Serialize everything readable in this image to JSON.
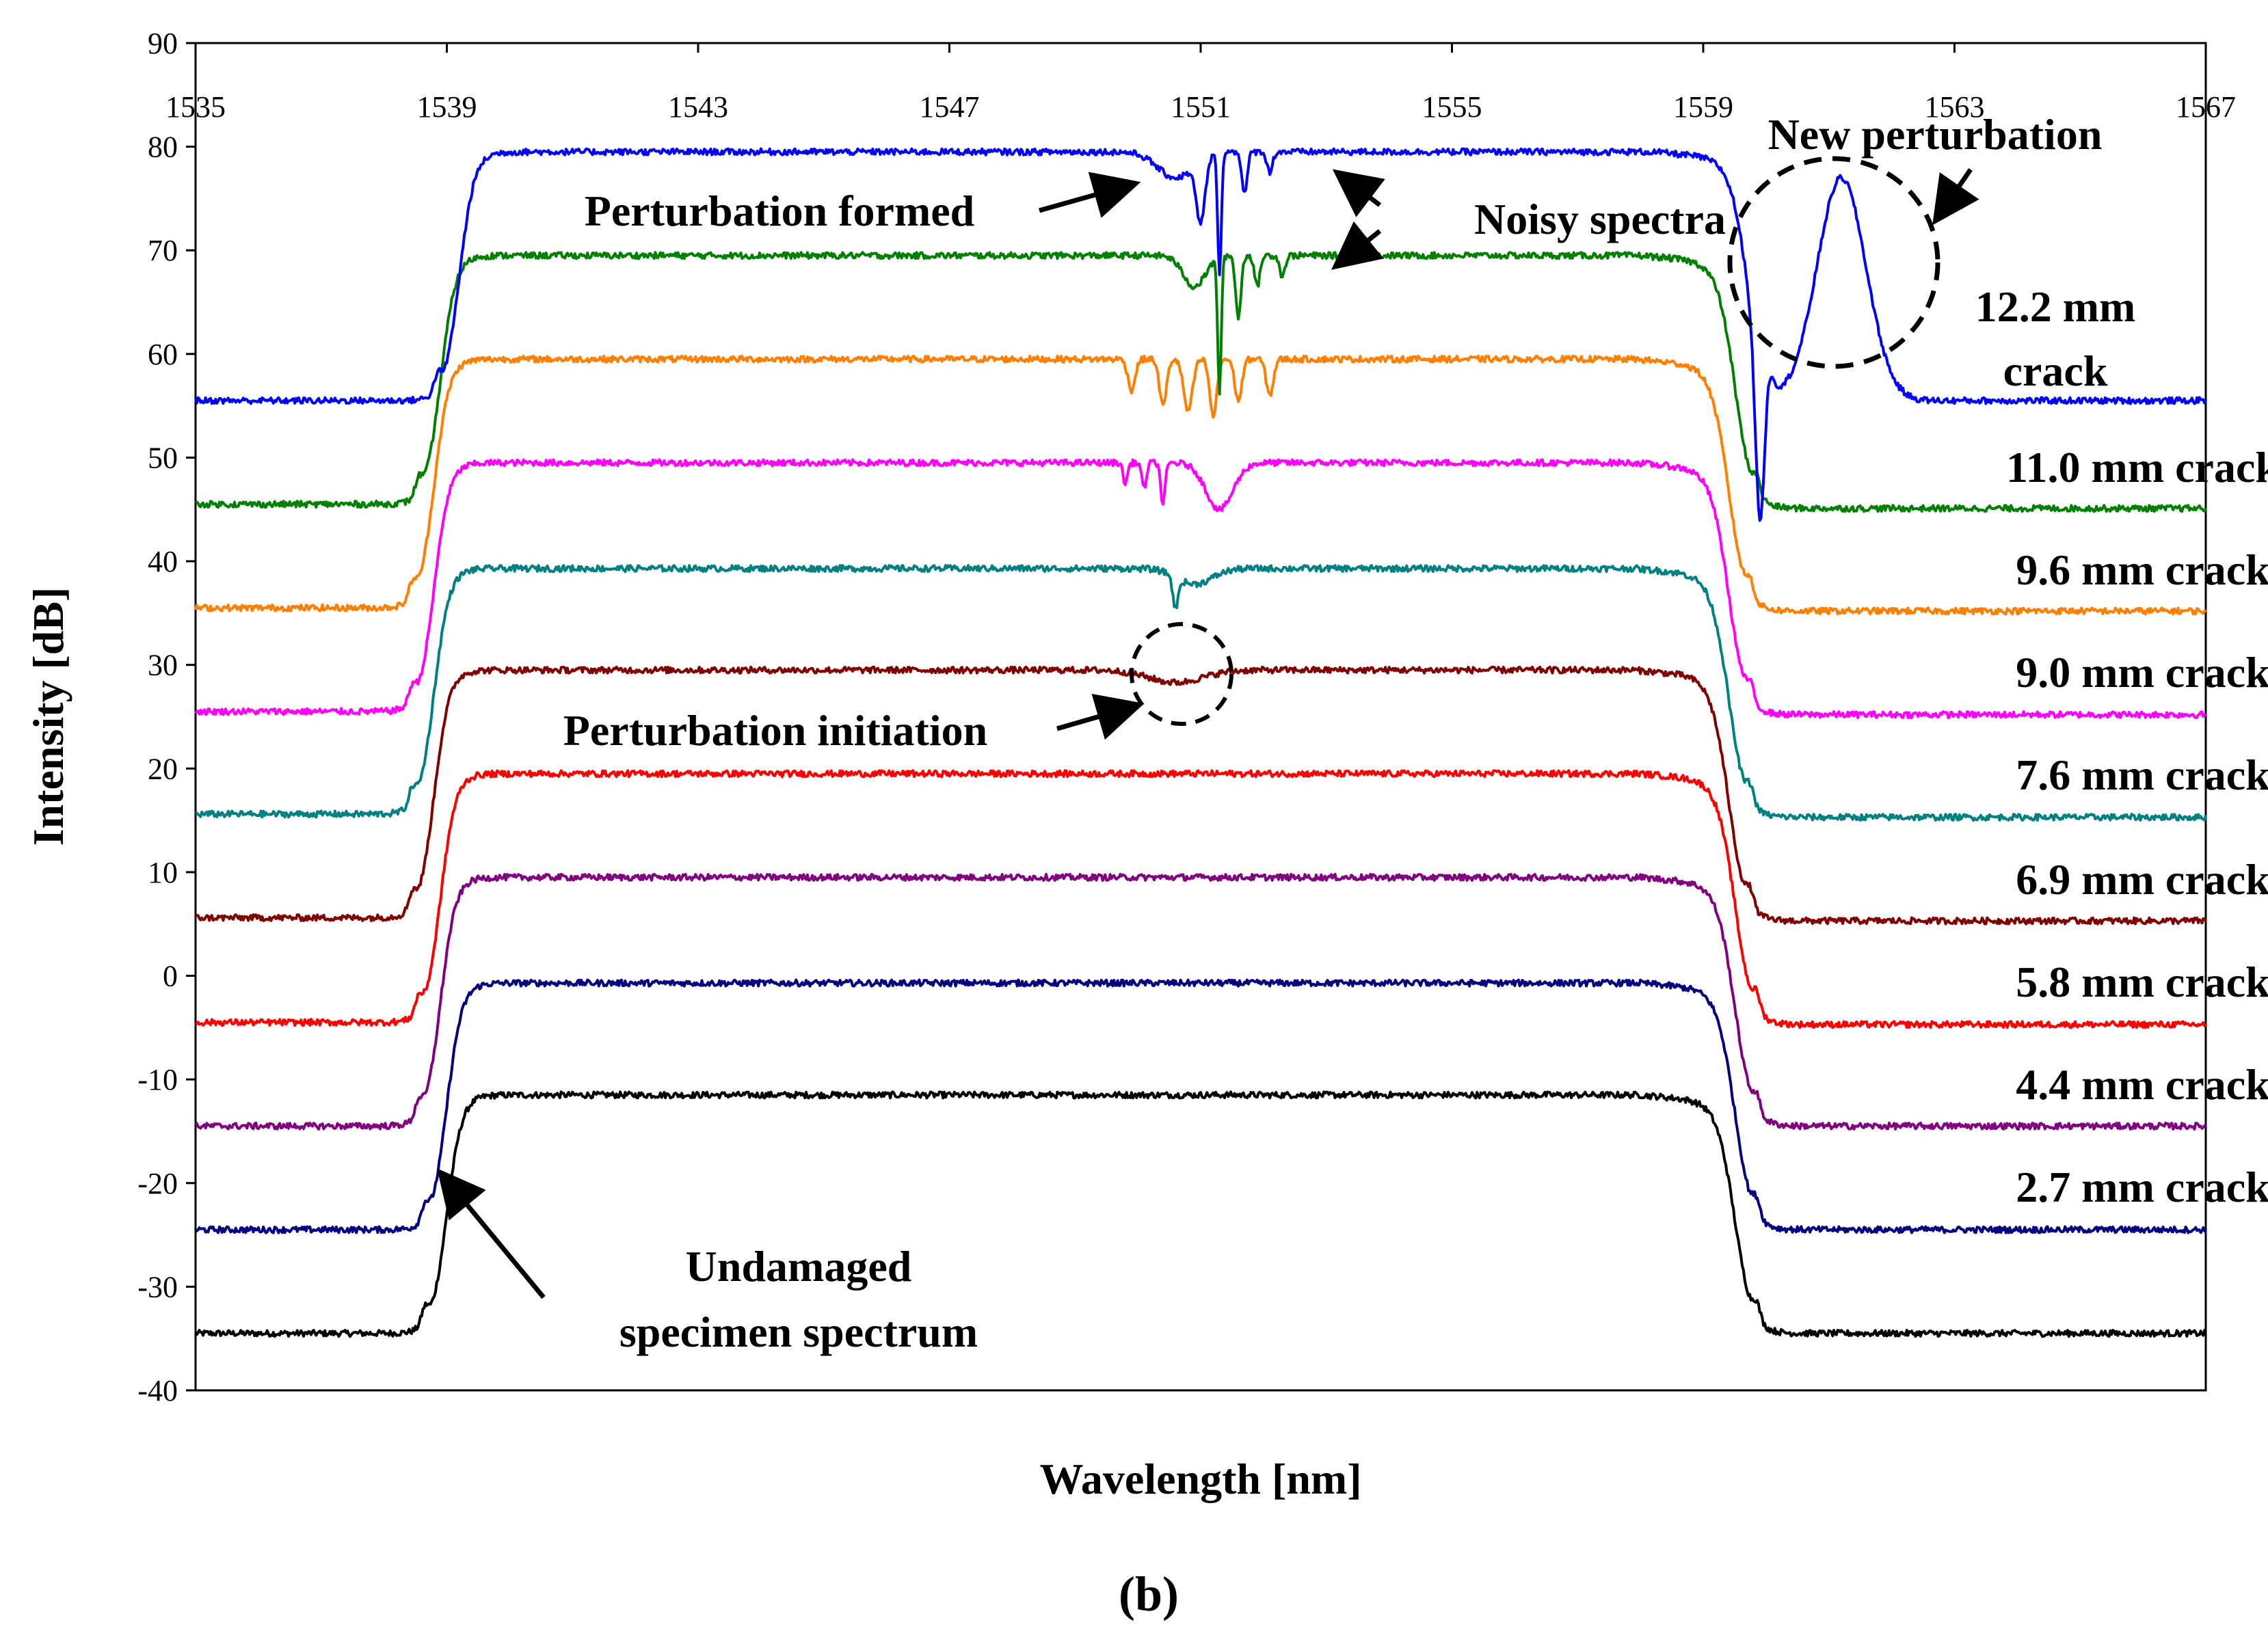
{
  "chart_data": {
    "type": "line",
    "title": "",
    "xlabel": "Wavelength [nm]",
    "ylabel": "Intensity [dB]",
    "xlim": [
      1535,
      1567
    ],
    "ylim": [
      -40,
      90
    ],
    "xticks": [
      1535,
      1539,
      1543,
      1547,
      1551,
      1555,
      1559,
      1563,
      1567
    ],
    "xtick_labels": [
      "1535",
      "1539",
      "1543",
      "1547",
      "1551",
      "1555",
      "1559",
      "1563",
      "1567"
    ],
    "yticks": [
      -40,
      -30,
      -20,
      -10,
      0,
      10,
      20,
      30,
      40,
      50,
      60,
      70,
      80,
      90
    ],
    "ytick_labels": [
      "-40",
      "-30",
      "-20",
      "-10",
      "0",
      "10",
      "20",
      "30",
      "40",
      "50",
      "60",
      "70",
      "80",
      "90"
    ],
    "grid": false,
    "series": [
      {
        "name": "Undamaged specimen spectrum",
        "color": "#000000",
        "base": -34.5,
        "top": -11.5,
        "rise": 1539.0,
        "fall": 1559.5,
        "tail_right": 0,
        "dips": []
      },
      {
        "name": "2.7 mm crack",
        "color": "#000080",
        "base": -24.5,
        "top": -0.7,
        "rise": 1539.0,
        "fall": 1559.5,
        "tail_right": 0,
        "dips": []
      },
      {
        "name": "4.4 mm crack",
        "color": "#800080",
        "base": -14.5,
        "top": 9.5,
        "rise": 1538.9,
        "fall": 1559.5,
        "tail_right": 0,
        "dips": []
      },
      {
        "name": "5.8 mm crack",
        "color": "#ff0000",
        "base": -4.5,
        "top": 19.5,
        "rise": 1538.9,
        "fall": 1559.5,
        "tail_right": -0.2,
        "dips": []
      },
      {
        "name": "6.9 mm crack",
        "color": "#800000",
        "base": 5.6,
        "top": 29.5,
        "rise": 1538.8,
        "fall": 1559.4,
        "tail_right": -0.3,
        "dips": [
          {
            "x": 1550.6,
            "depth": 1.2,
            "width": 0.6
          }
        ]
      },
      {
        "name": "7.6 mm crack",
        "color": "#008080",
        "base": 15.6,
        "top": 39.3,
        "rise": 1538.8,
        "fall": 1559.4,
        "tail_right": -0.3,
        "dips": [
          {
            "x": 1550.6,
            "depth": 3.0,
            "width": 0.06
          },
          {
            "x": 1550.9,
            "depth": 1.5,
            "width": 0.4
          }
        ]
      },
      {
        "name": "9.0 mm crack",
        "color": "#ff00ff",
        "base": 25.5,
        "top": 49.5,
        "rise": 1538.8,
        "fall": 1559.4,
        "tail_right": -0.3,
        "dips": [
          {
            "x": 1549.8,
            "depth": 2.0,
            "width": 0.05
          },
          {
            "x": 1550.1,
            "depth": 2.5,
            "width": 0.05
          },
          {
            "x": 1550.4,
            "depth": 4.0,
            "width": 0.05
          },
          {
            "x": 1551.3,
            "depth": 4.5,
            "width": 0.3
          }
        ]
      },
      {
        "name": "9.6 mm crack",
        "color": "#ff7f00",
        "base": 35.5,
        "top": 59.5,
        "rise": 1538.8,
        "fall": 1559.4,
        "tail_right": -0.3,
        "dips": [
          {
            "x": 1549.9,
            "depth": 3.0,
            "width": 0.08
          },
          {
            "x": 1550.4,
            "depth": 4.5,
            "width": 0.08
          },
          {
            "x": 1550.8,
            "depth": 5.0,
            "width": 0.1
          },
          {
            "x": 1551.2,
            "depth": 5.5,
            "width": 0.08
          },
          {
            "x": 1551.6,
            "depth": 4.0,
            "width": 0.08
          },
          {
            "x": 1552.1,
            "depth": 3.5,
            "width": 0.08
          }
        ]
      },
      {
        "name": "11.0 mm crack",
        "color": "#008000",
        "base": 45.5,
        "top": 69.5,
        "rise": 1538.9,
        "fall": 1559.5,
        "tail_right": -0.4,
        "dips": [
          {
            "x": 1550.9,
            "depth": 3.0,
            "width": 0.25
          },
          {
            "x": 1551.3,
            "depth": 13.0,
            "width": 0.04
          },
          {
            "x": 1551.6,
            "depth": 6.0,
            "width": 0.06
          },
          {
            "x": 1551.9,
            "depth": 3.0,
            "width": 0.06
          },
          {
            "x": 1552.3,
            "depth": 2.0,
            "width": 0.06
          }
        ]
      },
      {
        "name": "12.2 mm crack",
        "color": "#0000ff",
        "base": 55.5,
        "top": 79.5,
        "rise": 1539.2,
        "fall": 1559.7,
        "tail_right": 0,
        "dips": [
          {
            "x": 1550.6,
            "depth": 2.5,
            "width": 0.4
          },
          {
            "x": 1551.0,
            "depth": 6.0,
            "width": 0.1
          },
          {
            "x": 1551.3,
            "depth": 12.0,
            "width": 0.04
          },
          {
            "x": 1551.7,
            "depth": 4.0,
            "width": 0.06
          },
          {
            "x": 1552.1,
            "depth": 2.0,
            "width": 0.06
          },
          {
            "x": 1559.9,
            "depth": 16.0,
            "width": 0.1
          }
        ],
        "bump": {
          "x": 1561.2,
          "height": 77.0,
          "width": 0.55
        }
      }
    ],
    "series_labels": [
      {
        "text": "2.7 mm crack",
        "lines": [
          "2.7 mm crack"
        ]
      },
      {
        "text": "4.4 mm crack",
        "lines": [
          "4.4 mm crack"
        ]
      },
      {
        "text": "5.8 mm crack",
        "lines": [
          "5.8 mm crack"
        ]
      },
      {
        "text": "6.9 mm crack",
        "lines": [
          "6.9 mm crack"
        ]
      },
      {
        "text": "7.6 mm crack",
        "lines": [
          "7.6 mm crack"
        ]
      },
      {
        "text": "9.0 mm crack",
        "lines": [
          "9.0 mm crack"
        ]
      },
      {
        "text": "9.6 mm crack",
        "lines": [
          "9.6 mm crack"
        ]
      },
      {
        "text": "11.0 mm crack",
        "lines": [
          "11.0 mm crack"
        ]
      },
      {
        "text": "12.2 mm crack",
        "lines": [
          "12.2 mm",
          "crack"
        ]
      }
    ],
    "annotations": [
      {
        "id": "undamaged",
        "lines": [
          "Undamaged",
          "specimen spectrum"
        ]
      },
      {
        "id": "perturbation-initiation",
        "lines": [
          "Perturbation initiation"
        ]
      },
      {
        "id": "perturbation-formed",
        "lines": [
          "Perturbation formed"
        ]
      },
      {
        "id": "noisy-spectra",
        "lines": [
          "Noisy spectra"
        ]
      },
      {
        "id": "new-perturbation",
        "lines": [
          "New perturbation"
        ]
      }
    ],
    "caption": "(b)"
  }
}
